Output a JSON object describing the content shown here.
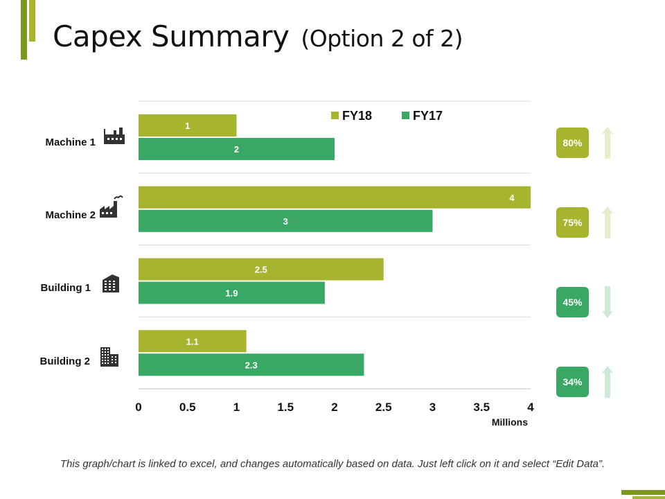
{
  "slide": {
    "title": "Capex Summary",
    "subtitle": "(Option 2 of 2)",
    "footer": "This graph/chart is linked to excel, and changes automatically based on data. Just left click on it and select “Edit Data”."
  },
  "colors": {
    "fy18": "#a6b52d",
    "fy17": "#3aa865",
    "gridline": "#d9d9d9",
    "accent_dark": "#7a9a1f",
    "accent_light": "#c2cf4a"
  },
  "chart_data": {
    "type": "bar",
    "orientation": "horizontal",
    "categories": [
      "Machine 1",
      "Machine 2",
      "Building 1",
      "Building 2"
    ],
    "category_icons": [
      "factory-icon",
      "factory-smoke-icon",
      "office-building-icon",
      "city-building-icon"
    ],
    "series": [
      {
        "name": "FY18",
        "values": [
          1,
          4,
          2.5,
          1.1
        ],
        "labels": [
          "1",
          "4",
          "2.5",
          "1.1"
        ]
      },
      {
        "name": "FY17",
        "values": [
          2,
          3,
          1.9,
          2.3
        ],
        "labels": [
          "2",
          "3",
          "1.9",
          "2.3"
        ]
      }
    ],
    "xlim": [
      0,
      4
    ],
    "xticks": [
      "0",
      "0.5",
      "1",
      "1.5",
      "2",
      "2.5",
      "3",
      "3.5",
      "4"
    ],
    "xlabel": "Millions",
    "legend": "top-right",
    "change_badges": [
      {
        "label": "80%",
        "direction": "up",
        "color": "fy18"
      },
      {
        "label": "75%",
        "direction": "up",
        "color": "fy18"
      },
      {
        "label": "45%",
        "direction": "down",
        "color": "fy17"
      },
      {
        "label": "34%",
        "direction": "up",
        "color": "fy17"
      }
    ]
  }
}
